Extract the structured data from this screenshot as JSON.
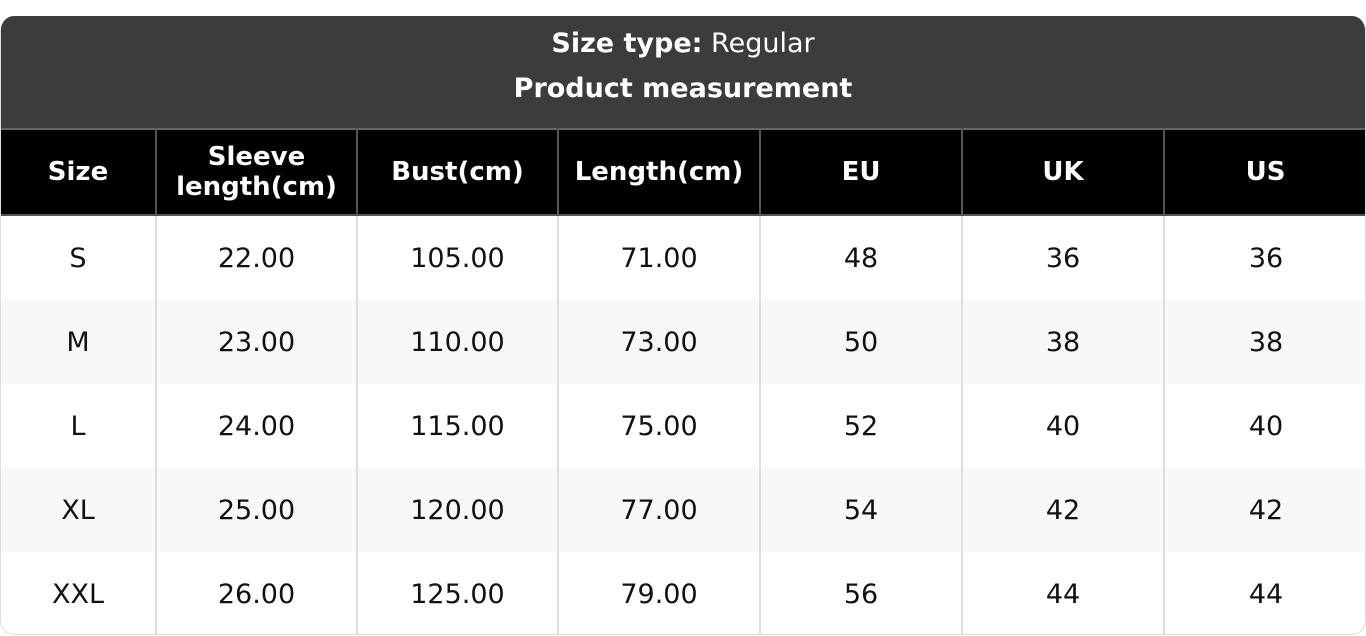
{
  "header": {
    "size_type_label": "Size type:",
    "size_type_value": "Regular",
    "subtitle": "Product measurement"
  },
  "table": {
    "columns": [
      "Size",
      "Sleeve length(cm)",
      "Bust(cm)",
      "Length(cm)",
      "EU",
      "UK",
      "US"
    ],
    "rows": [
      [
        "S",
        "22.00",
        "105.00",
        "71.00",
        "48",
        "36",
        "36"
      ],
      [
        "M",
        "23.00",
        "110.00",
        "73.00",
        "50",
        "38",
        "38"
      ],
      [
        "L",
        "24.00",
        "115.00",
        "75.00",
        "52",
        "40",
        "40"
      ],
      [
        "XL",
        "25.00",
        "120.00",
        "77.00",
        "54",
        "42",
        "42"
      ],
      [
        "XXL",
        "26.00",
        "125.00",
        "79.00",
        "56",
        "44",
        "44"
      ]
    ]
  },
  "colors": {
    "header_bg": "#3c3c3c",
    "column_header_bg": "#000000",
    "alt_row_bg": "#f8f8f8"
  }
}
